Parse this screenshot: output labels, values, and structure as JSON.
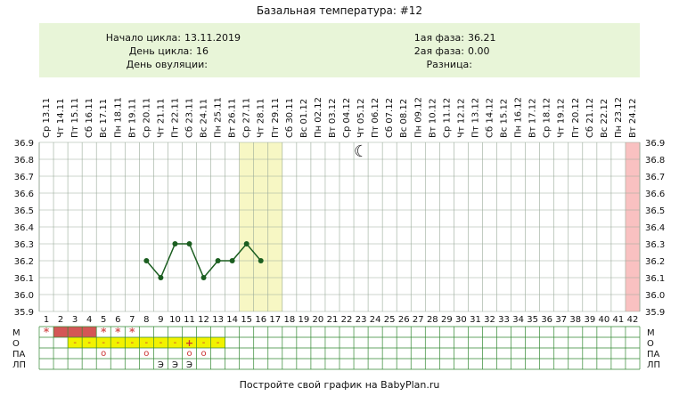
{
  "title": "Базальная температура: #12",
  "info": {
    "cycle_start_label": "Начало цикла:",
    "cycle_start": "13.11.2019",
    "cycle_day_label": "День цикла:",
    "cycle_day": "16",
    "ovulation_label": "День овуляции:",
    "ovulation": "",
    "phase1_label": "1ая фаза:",
    "phase1": "36.21",
    "phase2_label": "2ая фаза:",
    "phase2": "0.00",
    "diff_label": "Разница:",
    "diff": ""
  },
  "footer": "Постройте свой график на BabyPlan.ru",
  "row_labels": [
    "М",
    "О",
    "ПА",
    "ЛП"
  ],
  "chart_data": {
    "type": "line",
    "days": 42,
    "dates": [
      "Ср 13.11",
      "Чт 14.11",
      "Пт 15.11",
      "Сб 16.11",
      "Вс 17.11",
      "Пн 18.11",
      "Вт 19.11",
      "Ср 20.11",
      "Чт 21.11",
      "Пт 22.11",
      "Сб 23.11",
      "Вс 24.11",
      "Пн 25.11",
      "Вт 26.11",
      "Ср 27.11",
      "Чт 28.11",
      "Пт 29.11",
      "Сб 30.11",
      "Вс 01.12",
      "Пн 02.12",
      "Вт 03.12",
      "Ср 04.12",
      "Чт 05.12",
      "Пт 06.12",
      "Сб 07.12",
      "Вс 08.12",
      "Пн 09.12",
      "Вт 10.12",
      "Ср 11.12",
      "Чт 12.12",
      "Пт 13.12",
      "Сб 14.12",
      "Вс 15.12",
      "Пн 16.12",
      "Вт 17.12",
      "Ср 18.12",
      "Чт 19.12",
      "Пт 20.12",
      "Сб 21.12",
      "Вс 22.12",
      "Пн 23.12",
      "Вт 24.12"
    ],
    "y_ticks": [
      "35.9",
      "36.0",
      "36.1",
      "36.2",
      "36.3",
      "36.4",
      "36.5",
      "36.6",
      "36.7",
      "36.8",
      "36.9"
    ],
    "ylim": [
      35.9,
      36.9
    ],
    "series": [
      {
        "values": [
          [
            8,
            36.2
          ],
          [
            9,
            36.1
          ],
          [
            10,
            36.3
          ],
          [
            11,
            36.3
          ],
          [
            12,
            36.1
          ],
          [
            13,
            36.2
          ],
          [
            14,
            36.2
          ],
          [
            15,
            36.3
          ],
          [
            16,
            36.2
          ]
        ]
      }
    ],
    "highlight_days": [
      15,
      16,
      17
    ],
    "today_day": 42,
    "moon_day": 23,
    "colors": {
      "line": "#1b5e20",
      "highlight": "#f7f7c4",
      "today": "#f9c1c1",
      "info_bg": "#e8f5d8",
      "menstruation": "#d45656",
      "mucus": "#f2f200",
      "grid": "#99aa99"
    },
    "menstruation": {
      "star_days": [
        1,
        5,
        6,
        7
      ],
      "bar_days": [
        2,
        3,
        4
      ]
    },
    "mucus_dash_days": [
      3,
      4,
      5,
      6,
      7,
      8,
      9,
      10,
      11,
      12,
      13
    ],
    "mucus_plus_days": [
      11
    ],
    "pa_days": [
      5,
      8,
      11,
      12
    ],
    "lp_days": [
      9,
      10,
      11
    ],
    "lp_symbol": "Э",
    "star_symbol": "*",
    "dash_symbol": "-",
    "plus_symbol": "+",
    "pa_symbol": "o",
    "moon_symbol": "☾"
  }
}
